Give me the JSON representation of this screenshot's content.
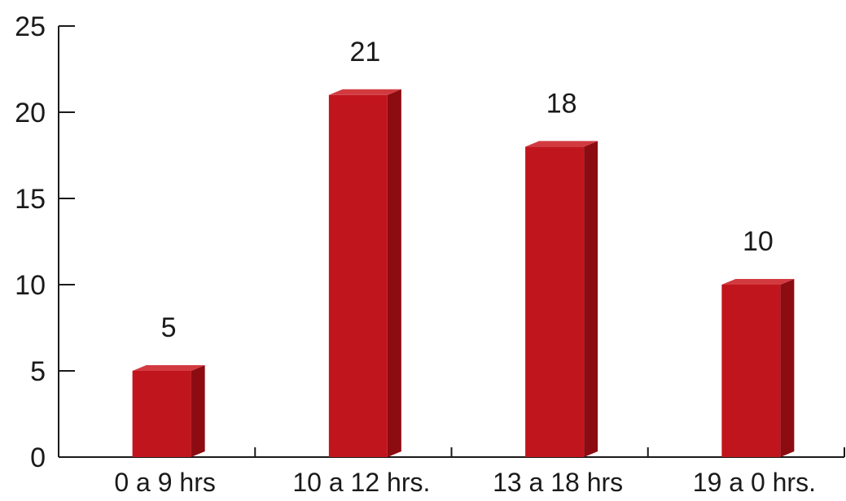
{
  "chart_data": {
    "type": "bar",
    "categories": [
      "0 a 9 hrs",
      "10 a 12 hrs.",
      "13 a 18 hrs",
      "19 a 0 hrs."
    ],
    "values": [
      5,
      21,
      18,
      10
    ],
    "data_labels": [
      "5",
      "21",
      "18",
      "10"
    ],
    "ylim": [
      0,
      25
    ],
    "yticks": [
      0,
      5,
      10,
      15,
      20,
      25
    ],
    "title": "",
    "xlabel": "",
    "ylabel": "",
    "grid": false,
    "bar_style": "3d",
    "colors": {
      "bar_front": "#c1151d",
      "bar_side": "#8c0c12",
      "bar_top": "#d23a40"
    }
  }
}
